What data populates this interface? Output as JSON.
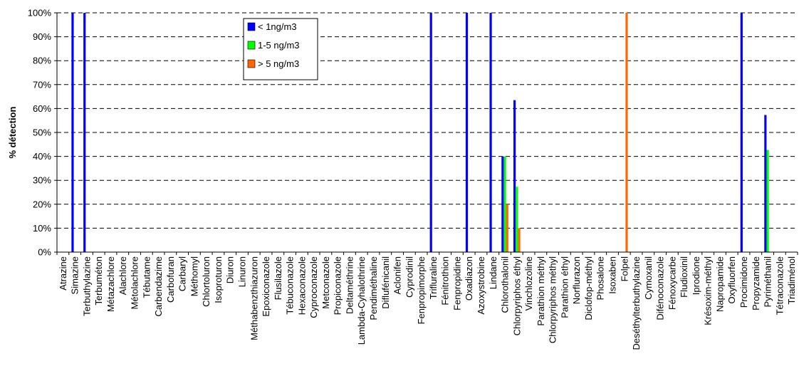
{
  "chart_data": {
    "type": "bar",
    "title": "",
    "xlabel": "",
    "ylabel": "% détection",
    "ylim": [
      0,
      100
    ],
    "yticks": [
      "0%",
      "10%",
      "20%",
      "30%",
      "40%",
      "50%",
      "60%",
      "70%",
      "80%",
      "90%",
      "100%"
    ],
    "grid": true,
    "legend_position": "top-center",
    "categories": [
      "Atrazine",
      "Simazine",
      "Terbuthylazine",
      "Terbuméton",
      "Métazachlore",
      "Alachlore",
      "Métolachlore",
      "Tébutame",
      "Carbendazime",
      "Carbofuran",
      "Carbaryl",
      "Méthomyl",
      "Chlortoluron",
      "Isoproturon",
      "Diuron",
      "Linuron",
      "Méthabenzthiazuron",
      "Epoxiconazole",
      "Flusilazole",
      "Tébuconazole",
      "Hexaconazole",
      "Cyproconazole",
      "Metconazole",
      "Propiconazole",
      "Deltaméthrine",
      "Lambda-Cyhalothrine",
      "Pendiméthaline",
      "Diflufénicanil",
      "Aclonifen",
      "Cyprodinil",
      "Fenpropimorphe",
      "Trifluraline",
      "Fénitrothion",
      "Fenpropidine",
      "Oxadiazon",
      "Azoxystrobine",
      "Lindane",
      "Chlorothalonil",
      "Chlorpyriphos éthyl",
      "Vinchlozoline",
      "Parathion méthyl",
      "Chlorpyriphos méthyl",
      "Parathion éthyl",
      "Norflurazon",
      "Diclofop-méthyl",
      "Phosalone",
      "Isoxaben",
      "Folpel",
      "Deséthylterbuthylazine",
      "Cymoxanil",
      "Difénoconazole",
      "Fénoxycarbe",
      "Fludioxinil",
      "Iprodione",
      "Krésoxim-méthyl",
      "Napropamide",
      "Oxyfluorfen",
      "Procimidone",
      "Propyzamide",
      "Pyriméthanil",
      "Tétraconazole",
      "Triadiménol"
    ],
    "series": [
      {
        "name": "< 1ng/m3",
        "color": "#0000ff",
        "values": [
          0,
          100,
          100,
          0,
          0,
          0,
          0,
          0,
          0,
          0,
          0,
          0,
          0,
          0,
          0,
          0,
          0,
          0,
          0,
          0,
          0,
          0,
          0,
          0,
          0,
          0,
          0,
          0,
          0,
          0,
          0,
          100,
          0,
          0,
          100,
          0,
          100,
          40,
          63.5,
          0,
          0,
          0,
          0,
          0,
          0,
          0,
          0,
          0,
          0,
          0,
          0,
          0,
          0,
          0,
          0,
          0,
          0,
          100,
          0,
          57.3,
          0,
          0
        ]
      },
      {
        "name": "1-5 ng/m3",
        "color": "#00ff00",
        "values": [
          0,
          0,
          0,
          0,
          0,
          0,
          0,
          0,
          0,
          0,
          0,
          0,
          0,
          0,
          0,
          0,
          0,
          0,
          0,
          0,
          0,
          0,
          0,
          0,
          0,
          0,
          0,
          0,
          0,
          0,
          0,
          0,
          0,
          0,
          0,
          0,
          0,
          40,
          27.3,
          0,
          0,
          0,
          0,
          0,
          0,
          0,
          0,
          0,
          0,
          0,
          0,
          0,
          0,
          0,
          0,
          0,
          0,
          0,
          0,
          42.7,
          0,
          0
        ]
      },
      {
        "name": "> 5 ng/m3",
        "color": "#ff6600",
        "values": [
          0,
          0,
          0,
          0,
          0,
          0,
          0,
          0,
          0,
          0,
          0,
          0,
          0,
          0,
          0,
          0,
          0,
          0,
          0,
          0,
          0,
          0,
          0,
          0,
          0,
          0,
          0,
          0,
          0,
          0,
          0,
          0,
          0,
          0,
          0,
          0,
          0,
          20,
          10,
          0,
          0,
          0,
          0,
          0,
          0,
          0,
          0,
          100,
          0,
          0,
          0,
          0,
          0,
          0,
          0,
          0,
          0,
          0,
          0,
          0,
          0,
          0
        ]
      }
    ]
  }
}
